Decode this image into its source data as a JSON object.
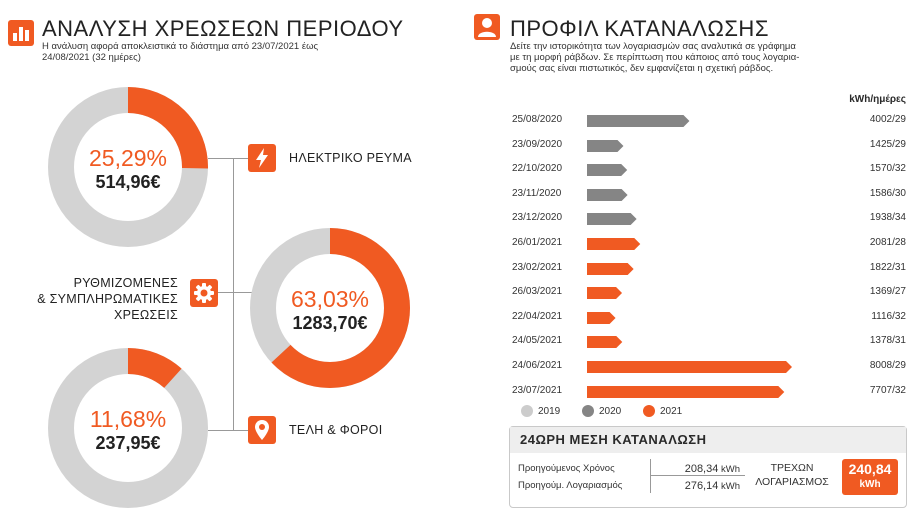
{
  "analysis": {
    "title": "ΑΝΑΛΥΣΗ ΧΡΕΩΣΕΩΝ ΠΕΡΙΟΔΟΥ",
    "subtitle_line1": "Η ανάλυση αφορά αποκλειστικά το διάστημα από 23/07/2021 έως",
    "subtitle_line2": "24/08/2021 (32 ημέρες)",
    "icon": "bar-chart-icon",
    "segments": [
      {
        "name": "ΗΛΕΚΤΡΙΚΟ ΡΕΥΜΑ",
        "percent_label": "25,29%",
        "percent": 25.29,
        "amount": "514,96€",
        "icon": "lightning-icon"
      },
      {
        "name_lines": [
          "ΡΥΘΜΙΖΟΜΕΝΕΣ",
          "& ΣΥΜΠΛΗΡΩΜΑΤΙΚΕΣ",
          "ΧΡΕΩΣΕΙΣ"
        ],
        "percent_label": "63,03%",
        "percent": 63.03,
        "amount": "1283,70€",
        "icon": "gear-icon"
      },
      {
        "name": "ΤΕΛΗ & ΦΟΡΟΙ",
        "percent_label": "11,68%",
        "percent": 11.68,
        "amount": "237,95€",
        "icon": "location-pin-icon"
      }
    ],
    "colors": {
      "accent": "#f05a22",
      "ring_bg": "#d3d3d3"
    }
  },
  "profile": {
    "title": "ΠΡΟΦΙΛ ΚΑΤΑΝΑΛΩΣΗΣ",
    "icon": "user-icon",
    "desc_line1": "Δείτε την ιστορικότητα των λογαριασμών σας αναλυτικά σε γράφημα",
    "desc_line2": "με τη μορφή ράβδων. Σε περίπτωση που κάποιος από τους λογαρια-",
    "desc_line3": "σμούς σας είναι πιστωτικός, δεν εμφανίζεται η σχετική ράβδος.",
    "unit_header": "kWh/ημέρες"
  },
  "chart_data": {
    "type": "bar",
    "orientation": "horizontal",
    "categories": [
      "25/08/2020",
      "23/09/2020",
      "22/10/2020",
      "23/11/2020",
      "23/12/2020",
      "26/01/2021",
      "23/02/2021",
      "26/03/2021",
      "22/04/2021",
      "24/05/2021",
      "24/06/2021",
      "23/07/2021"
    ],
    "value_labels": [
      "4002/29",
      "1425/29",
      "1570/32",
      "1586/30",
      "1938/34",
      "2081/28",
      "1822/31",
      "1369/27",
      "1116/32",
      "1378/31",
      "8008/29",
      "7707/32"
    ],
    "kwh": [
      4002,
      1425,
      1570,
      1586,
      1938,
      2081,
      1822,
      1369,
      1116,
      1378,
      8008,
      7707
    ],
    "year": [
      "2020",
      "2020",
      "2020",
      "2020",
      "2020",
      "2021",
      "2021",
      "2021",
      "2021",
      "2021",
      "2021",
      "2021"
    ],
    "legend": [
      {
        "name": "2019",
        "color": "#cccccc"
      },
      {
        "name": "2020",
        "color": "#858585"
      },
      {
        "name": "2021",
        "color": "#f05a22"
      }
    ]
  },
  "daily": {
    "title": "24ΩΡΗ ΜΕΣΗ ΚΑΤΑΝΑΛΩΣΗ",
    "prev_year_label": "Προηγούμενος Χρόνος",
    "prev_year_value": "208,34",
    "prev_bill_label": "Προηγούμ. Λογαριασμός",
    "prev_bill_value": "276,14",
    "unit": "kWh",
    "current_label_line1": "ΤΡΕΧΩΝ",
    "current_label_line2": "ΛΟΓΑΡΙΑΣΜΟΣ",
    "current_value": "240,84",
    "current_unit": "kWh"
  }
}
